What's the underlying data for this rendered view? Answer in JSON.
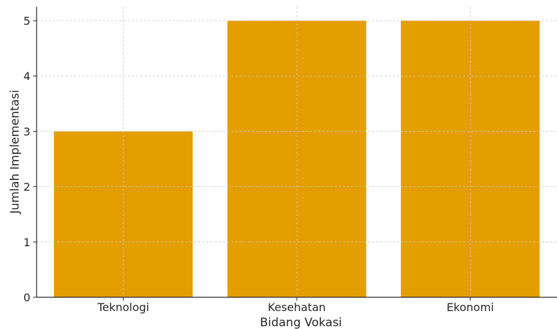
{
  "chart_data": {
    "type": "bar",
    "title": "",
    "xlabel": "Bidang Vokasi",
    "ylabel": "Jumlah Implementasi",
    "categories": [
      "Teknologi",
      "Kesehatan",
      "Ekonomi"
    ],
    "series": [
      {
        "values": [
          3,
          5,
          5
        ],
        "color": "#e49e00"
      }
    ],
    "ylim": [
      0,
      5.25
    ],
    "yticks": [
      0,
      1,
      2,
      3,
      4,
      5
    ],
    "grid": true,
    "legend": "none"
  }
}
